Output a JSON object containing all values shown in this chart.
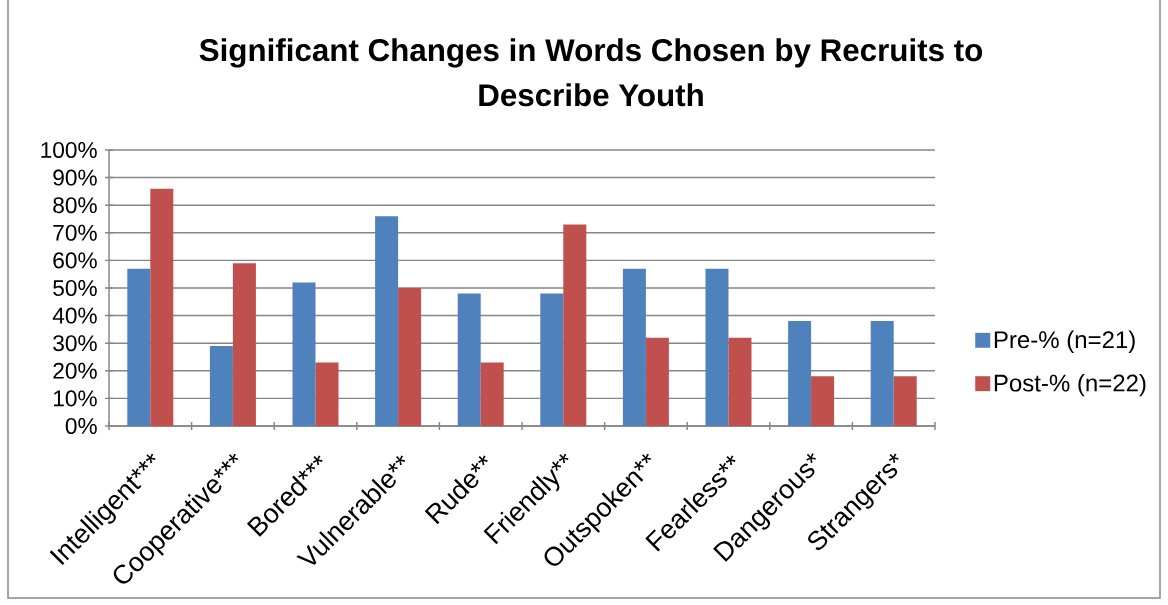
{
  "chart_data": {
    "type": "bar",
    "title": "Significant Changes in Words Chosen by Recruits to Describe Youth",
    "categories": [
      "Intelligent***",
      "Cooperative***",
      "Bored***",
      "Vulnerable**",
      "Rude**",
      "Friendly**",
      "Outspoken**",
      "Fearless**",
      "Dangerous*",
      "Strangers*"
    ],
    "series": [
      {
        "name": "Pre-% (n=21)",
        "color": "#4f81bd",
        "values": [
          57,
          29,
          52,
          76,
          48,
          48,
          57,
          57,
          38,
          38
        ]
      },
      {
        "name": "Post-% (n=22)",
        "color": "#c0504d",
        "values": [
          86,
          59,
          23,
          50,
          23,
          73,
          32,
          32,
          18,
          18
        ]
      }
    ],
    "ylim": [
      0,
      100
    ],
    "yticks": [
      {
        "value": 0,
        "label": "0%"
      },
      {
        "value": 10,
        "label": "10%"
      },
      {
        "value": 20,
        "label": "20%"
      },
      {
        "value": 30,
        "label": "30%"
      },
      {
        "value": 40,
        "label": "40%"
      },
      {
        "value": 50,
        "label": "50%"
      },
      {
        "value": 60,
        "label": "60%"
      },
      {
        "value": 70,
        "label": "70%"
      },
      {
        "value": 80,
        "label": "80%"
      },
      {
        "value": 90,
        "label": "90%"
      },
      {
        "value": 100,
        "label": "100%"
      }
    ],
    "grid": "y",
    "legend": "right"
  }
}
